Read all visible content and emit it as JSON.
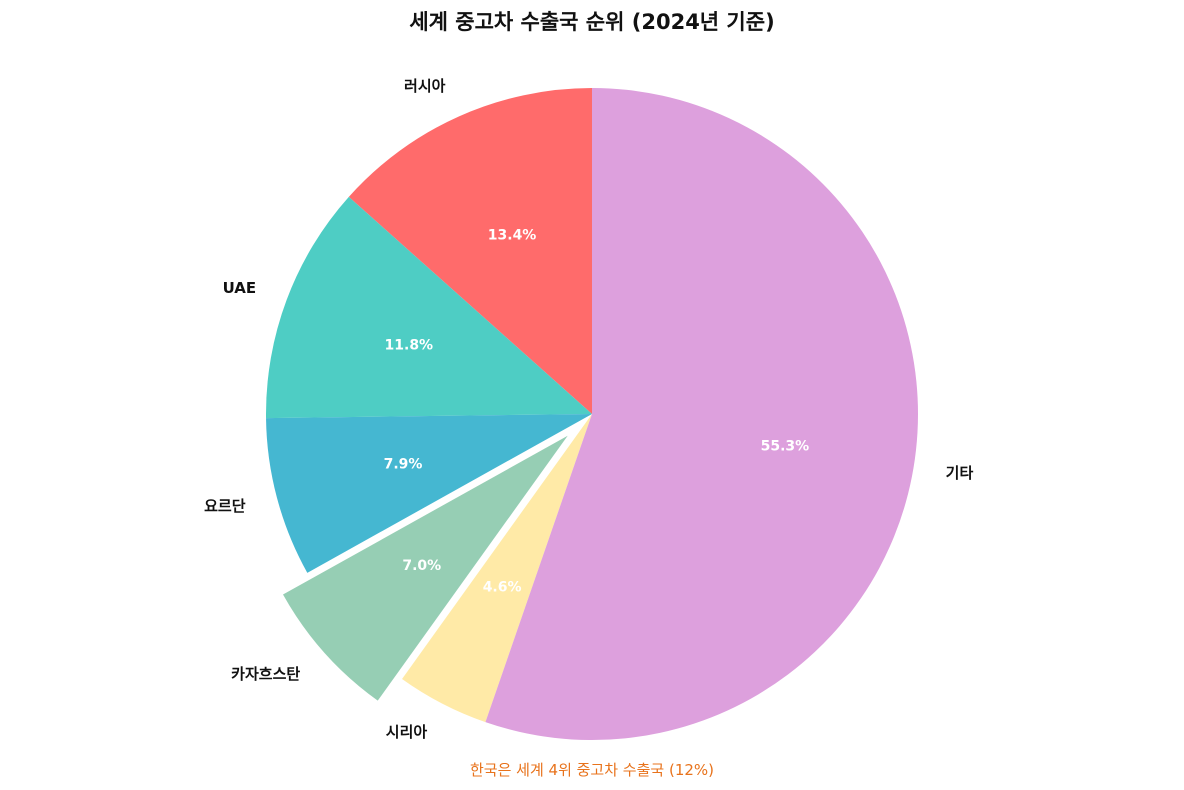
{
  "chart_data": {
    "type": "pie",
    "title": "세계 중고차 수출국 순위 (2024년 기준)",
    "annotation": "한국은 세계 4위 중고차 수출국 (12%)",
    "start_angle_deg": 90,
    "direction": "counterclockwise",
    "slices": [
      {
        "label": "러시아",
        "value": 13.4,
        "pct_label": "13.4%",
        "color": "#ff6b6b",
        "explode": 0
      },
      {
        "label": "UAE",
        "value": 11.8,
        "pct_label": "11.8%",
        "color": "#4ecdc4",
        "explode": 0
      },
      {
        "label": "요르단",
        "value": 7.9,
        "pct_label": "7.9%",
        "color": "#45b7d1",
        "explode": 0
      },
      {
        "label": "카자흐스탄",
        "value": 7.0,
        "pct_label": "7.0%",
        "color": "#96ceb4",
        "explode": 0.1
      },
      {
        "label": "시리아",
        "value": 4.6,
        "pct_label": "4.6%",
        "color": "#ffeaa7",
        "explode": 0
      },
      {
        "label": "기타",
        "value": 55.3,
        "pct_label": "55.3%",
        "color": "#dda0dd",
        "explode": 0
      }
    ]
  }
}
